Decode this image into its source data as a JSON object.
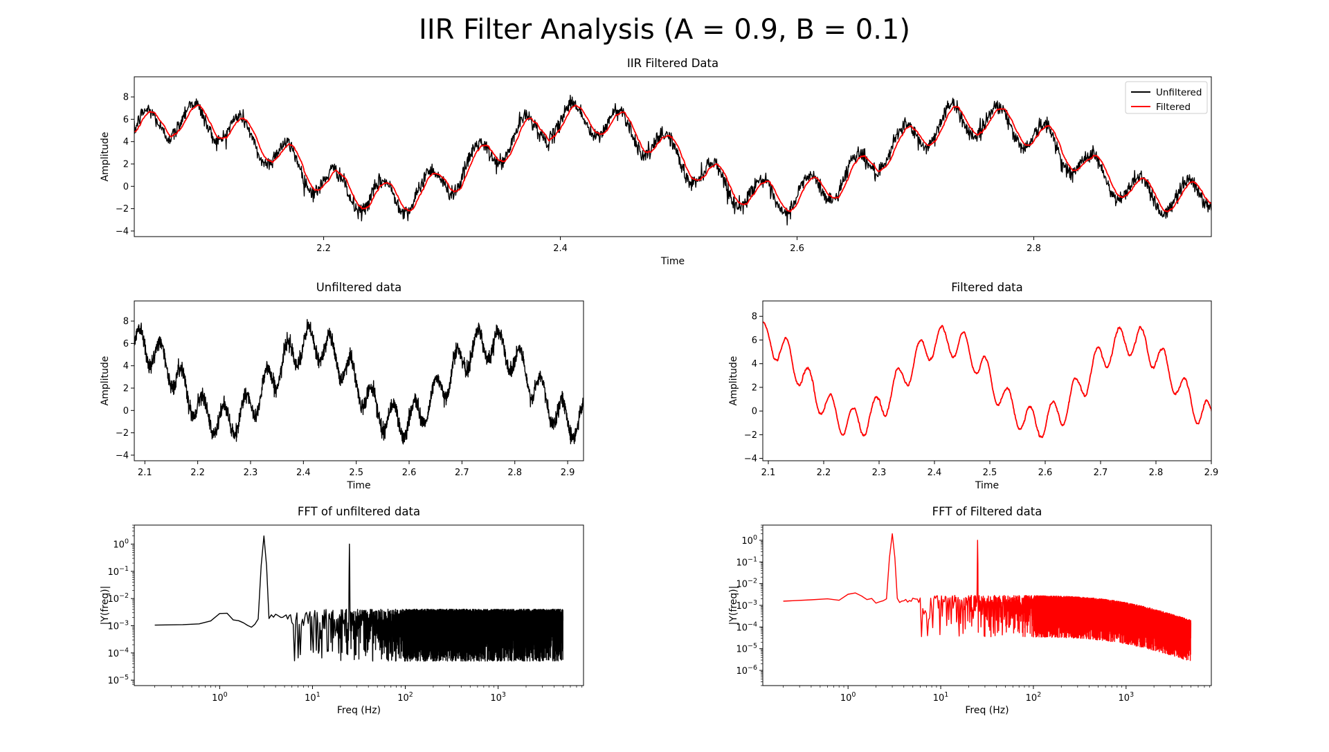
{
  "figure_title": "IIR Filter Analysis (A = 0.9, B = 0.1)",
  "colors": {
    "unfiltered": "#000000",
    "filtered": "#ff0000"
  },
  "chart_data": [
    {
      "id": "overlay",
      "type": "line",
      "title": "IIR Filtered Data",
      "xlabel": "Time",
      "ylabel": "Amplitude",
      "xlim": [
        2.04,
        2.95
      ],
      "ylim": [
        -4.5,
        9.8
      ],
      "xticks": [
        2.2,
        2.4,
        2.6,
        2.8
      ],
      "yticks": [
        -4,
        -2,
        0,
        2,
        4,
        6,
        8
      ],
      "legend": {
        "placement": "upper right",
        "entries": [
          "Unfiltered",
          "Filtered"
        ]
      },
      "signal": {
        "offset": 2.5,
        "components": [
          {
            "amplitude": 3.5,
            "frequency_hz": 3,
            "phase_deg": 0
          },
          {
            "amplitude": 1.5,
            "frequency_hz": 25,
            "phase_deg": 0
          }
        ],
        "noise_amplitude": 0.35,
        "filter_coefficients": {
          "A": 0.9,
          "B": 0.1
        }
      },
      "series": [
        {
          "name": "Unfiltered",
          "color": "#000000"
        },
        {
          "name": "Filtered",
          "color": "#ff0000"
        }
      ]
    },
    {
      "id": "unfiltered",
      "type": "line",
      "title": "Unfiltered data",
      "xlabel": "Time",
      "ylabel": "Amplitude",
      "xlim": [
        2.08,
        2.93
      ],
      "ylim": [
        -4.5,
        9.8
      ],
      "xticks": [
        2.1,
        2.2,
        2.3,
        2.4,
        2.5,
        2.6,
        2.7,
        2.8,
        2.9
      ],
      "yticks": [
        -4,
        -2,
        0,
        2,
        4,
        6,
        8
      ],
      "series": [
        {
          "color": "#000000"
        }
      ]
    },
    {
      "id": "filtered",
      "type": "line",
      "title": "Filtered data",
      "xlabel": "Time",
      "ylabel": "Amplitude",
      "xlim": [
        2.09,
        2.9
      ],
      "ylim": [
        -4.2,
        9.3
      ],
      "xticks": [
        2.1,
        2.2,
        2.3,
        2.4,
        2.5,
        2.6,
        2.7,
        2.8,
        2.9
      ],
      "yticks": [
        -4,
        -2,
        0,
        2,
        4,
        6,
        8
      ],
      "series": [
        {
          "color": "#ff0000"
        }
      ]
    },
    {
      "id": "fft_unfiltered",
      "type": "line",
      "title": "FFT of unfiltered data",
      "xlabel": "Freq (Hz)",
      "ylabel": "|Y(freq)|",
      "xscale": "log",
      "yscale": "log",
      "xlim_log10": [
        -0.92,
        3.92
      ],
      "ylim_log10": [
        -5.2,
        0.7
      ],
      "xtick_exponents": [
        0,
        1,
        2,
        3
      ],
      "ytick_exponents": [
        -5,
        -4,
        -3,
        -2,
        -1,
        0
      ],
      "peaks": [
        {
          "freq_hz": 3,
          "value": 2.0
        },
        {
          "freq_hz": 25,
          "value": 1.0
        }
      ],
      "noise_floor": 0.0025,
      "series": [
        {
          "color": "#000000"
        }
      ]
    },
    {
      "id": "fft_filtered",
      "type": "line",
      "title": "FFT of Filtered data",
      "xlabel": "Freq (Hz)",
      "ylabel": "|Y(freq)|",
      "xscale": "log",
      "yscale": "log",
      "xlim_log10": [
        -0.92,
        3.92
      ],
      "ylim_log10": [
        -6.7,
        0.7
      ],
      "xtick_exponents": [
        0,
        1,
        2,
        3
      ],
      "ytick_exponents": [
        -6,
        -5,
        -4,
        -3,
        -2,
        -1,
        0
      ],
      "peaks": [
        {
          "freq_hz": 3,
          "value": 2.0
        },
        {
          "freq_hz": 25,
          "value": 1.0
        }
      ],
      "noise_floor": 0.0015,
      "series": [
        {
          "color": "#ff0000"
        }
      ]
    }
  ]
}
